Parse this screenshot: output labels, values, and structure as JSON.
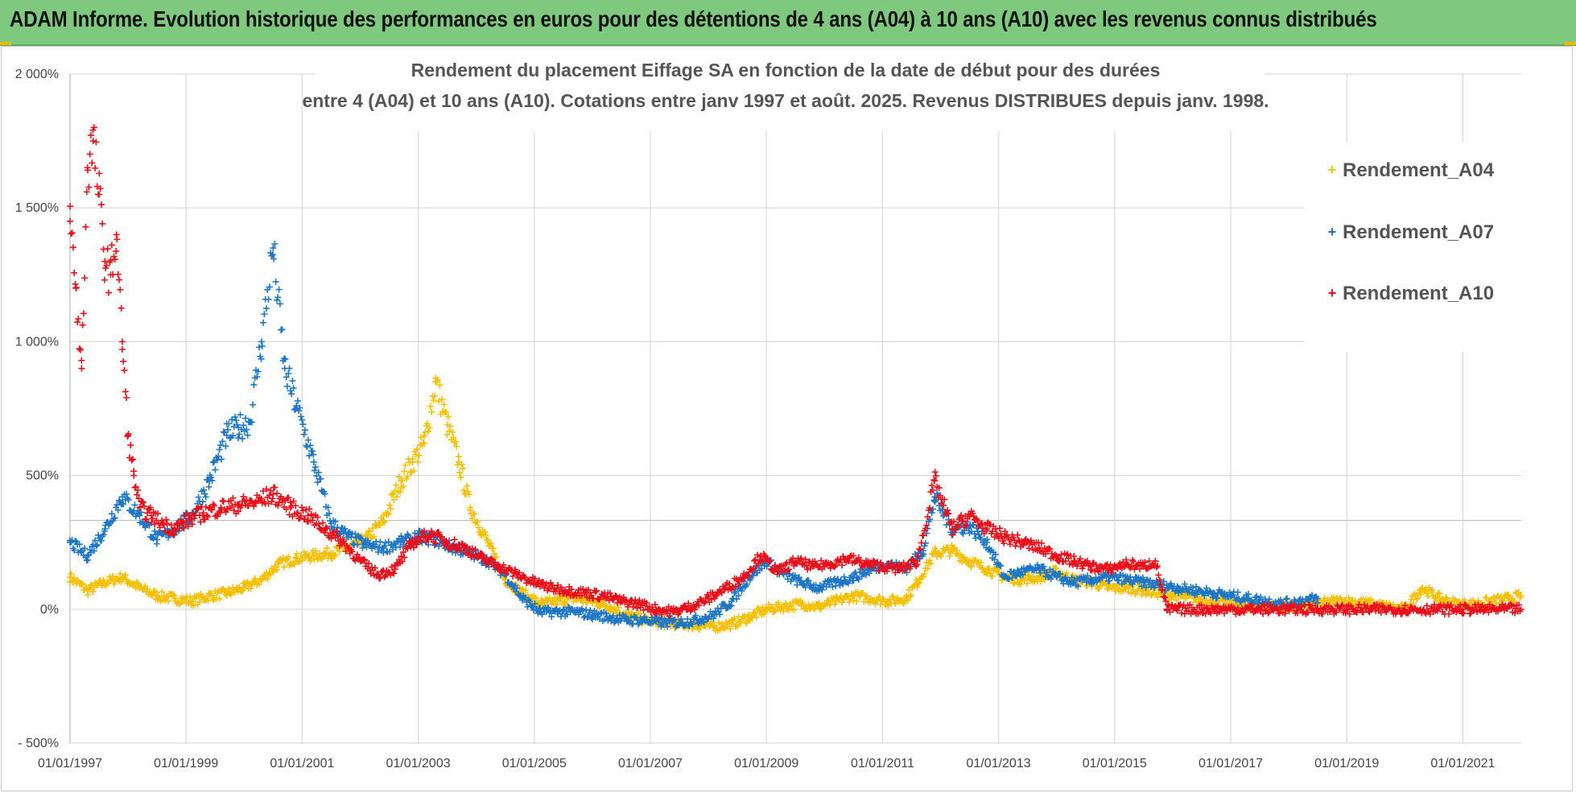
{
  "banner": {
    "title": "ADAM Informe. Evolution historique des performances en euros pour des détentions de 4 ans (A04) à 10 ans (A10) avec les revenus connus distribués"
  },
  "colors": {
    "banner_bg": "#7fc97f",
    "series_A04": "#f5c000",
    "series_A07": "#1f77c4",
    "series_A10": "#e8101a",
    "grid": "#d9d9d9"
  },
  "chart_data": {
    "type": "scatter",
    "title_line1": "Rendement du placement Eiffage SA en fonction de la date de début pour des durées",
    "title_line2": "entre 4 (A04) et 10 ans (A10).  Cotations entre janv 1997 et août. 2025. Revenus DISTRIBUES depuis janv. 1998.",
    "xlabel": "",
    "ylabel": "",
    "ylim": [
      -500,
      2000
    ],
    "xlim": [
      1997.0,
      2022.1
    ],
    "grid": true,
    "legend_position": "top-right",
    "y_ticks": [
      {
        "value": 2000,
        "label": "2 000%"
      },
      {
        "value": 1500,
        "label": "1 500%"
      },
      {
        "value": 1000,
        "label": "1 000%"
      },
      {
        "value": 500,
        "label": "500%"
      },
      {
        "value": 0,
        "label": "0%"
      },
      {
        "value": -500,
        "label": "- 500%"
      }
    ],
    "x_ticks": [
      {
        "value": 1997,
        "label": "01/01/1997"
      },
      {
        "value": 1999,
        "label": "01/01/1999"
      },
      {
        "value": 2001,
        "label": "01/01/2001"
      },
      {
        "value": 2003,
        "label": "01/01/2003"
      },
      {
        "value": 2005,
        "label": "01/01/2005"
      },
      {
        "value": 2007,
        "label": "01/01/2007"
      },
      {
        "value": 2009,
        "label": "01/01/2009"
      },
      {
        "value": 2011,
        "label": "01/01/2011"
      },
      {
        "value": 2013,
        "label": "01/01/2013"
      },
      {
        "value": 2015,
        "label": "01/01/2015"
      },
      {
        "value": 2017,
        "label": "01/01/2017"
      },
      {
        "value": 2019,
        "label": "01/01/2019"
      },
      {
        "value": 2021,
        "label": "01/01/2021"
      }
    ],
    "series": [
      {
        "name": "Rendement_A04",
        "color": "#f5c000",
        "x": [
          1997.0,
          1997.3,
          1997.6,
          1997.9,
          1998.2,
          1998.5,
          1998.8,
          1999.1,
          1999.4,
          1999.7,
          2000.0,
          2000.3,
          2000.6,
          2000.9,
          2001.2,
          2001.5,
          2001.8,
          2002.1,
          2002.4,
          2002.7,
          2002.9,
          2003.1,
          2003.3,
          2003.5,
          2003.7,
          2003.9,
          2004.2,
          2004.5,
          2004.8,
          2005.1,
          2005.4,
          2005.7,
          2006.0,
          2006.3,
          2006.6,
          2006.9,
          2007.2,
          2007.5,
          2007.8,
          2008.1,
          2008.4,
          2008.7,
          2009.0,
          2009.3,
          2009.6,
          2009.9,
          2010.2,
          2010.5,
          2010.8,
          2011.1,
          2011.4,
          2011.6,
          2011.9,
          2012.2,
          2012.5,
          2012.8,
          2013.1,
          2013.4,
          2013.7,
          2014.0,
          2014.3,
          2014.6,
          2014.9,
          2015.2,
          2015.5,
          2015.8,
          2016.1,
          2016.4,
          2016.7,
          2017.0,
          2017.3,
          2017.6,
          2017.9,
          2018.2,
          2018.5,
          2018.8,
          2019.1,
          2019.4,
          2019.7,
          2020.0,
          2020.3,
          2020.6,
          2020.9,
          2021.2,
          2021.5,
          2021.8,
          2022.0
        ],
        "y": [
          120,
          70,
          100,
          120,
          80,
          50,
          40,
          30,
          50,
          60,
          80,
          110,
          170,
          190,
          200,
          210,
          230,
          260,
          330,
          480,
          550,
          620,
          850,
          690,
          550,
          380,
          250,
          110,
          60,
          20,
          30,
          40,
          30,
          10,
          -20,
          -40,
          -50,
          -55,
          -60,
          -65,
          -55,
          -30,
          0,
          10,
          20,
          10,
          30,
          50,
          40,
          30,
          40,
          100,
          210,
          220,
          180,
          150,
          120,
          110,
          120,
          140,
          110,
          100,
          80,
          80,
          70,
          60,
          50,
          40,
          30,
          20,
          10,
          10,
          10,
          10,
          20,
          30,
          30,
          20,
          10,
          0,
          80,
          40,
          20,
          20,
          30,
          40,
          50
        ]
      },
      {
        "name": "Rendement_A07",
        "color": "#1f77c4",
        "x": [
          1997.0,
          1997.3,
          1997.6,
          1997.9,
          1998.2,
          1998.5,
          1998.8,
          1999.1,
          1999.4,
          1999.7,
          1999.9,
          2000.1,
          2000.3,
          2000.5,
          2000.7,
          2000.9,
          2001.2,
          2001.5,
          2001.8,
          2002.1,
          2002.4,
          2002.7,
          2003.0,
          2003.3,
          2003.6,
          2003.9,
          2004.2,
          2004.5,
          2004.8,
          2005.1,
          2005.4,
          2005.7,
          2006.0,
          2006.3,
          2006.6,
          2006.9,
          2007.2,
          2007.5,
          2007.8,
          2008.1,
          2008.4,
          2008.7,
          2009.0,
          2009.3,
          2009.6,
          2009.9,
          2010.2,
          2010.5,
          2010.8,
          2011.1,
          2011.4,
          2011.7,
          2011.9,
          2012.2,
          2012.5,
          2012.8,
          2013.1,
          2013.4,
          2013.7,
          2014.0,
          2014.3,
          2014.6,
          2014.9,
          2015.2,
          2015.5,
          2015.8,
          2016.1,
          2016.4,
          2016.7,
          2017.0,
          2017.3,
          2017.6,
          2017.9,
          2018.2,
          2018.5
        ],
        "y": [
          250,
          200,
          300,
          420,
          350,
          260,
          300,
          350,
          480,
          650,
          680,
          700,
          1000,
          1350,
          900,
          760,
          550,
          320,
          270,
          240,
          230,
          250,
          270,
          260,
          230,
          210,
          180,
          130,
          40,
          -10,
          -10,
          -10,
          -20,
          -30,
          -40,
          -40,
          -50,
          -50,
          -40,
          -20,
          30,
          120,
          180,
          130,
          100,
          80,
          100,
          120,
          150,
          170,
          150,
          220,
          420,
          300,
          310,
          250,
          120,
          140,
          150,
          120,
          100,
          110,
          120,
          110,
          100,
          90,
          80,
          70,
          60,
          50,
          40,
          30,
          20,
          30,
          40
        ]
      },
      {
        "name": "Rendement_A10",
        "color": "#e8101a",
        "x": [
          1997.0,
          1997.1,
          1997.2,
          1997.3,
          1997.4,
          1997.5,
          1997.6,
          1997.7,
          1997.8,
          1997.9,
          1998.0,
          1998.1,
          1998.2,
          1998.4,
          1998.6,
          1998.8,
          1999.0,
          1999.3,
          1999.6,
          1999.9,
          2000.2,
          2000.5,
          2000.8,
          2001.1,
          2001.4,
          2001.7,
          2002.0,
          2002.3,
          2002.6,
          2002.9,
          2003.2,
          2003.5,
          2003.8,
          2004.1,
          2004.4,
          2004.7,
          2005.0,
          2005.3,
          2005.6,
          2005.9,
          2006.2,
          2006.5,
          2006.8,
          2007.1,
          2007.4,
          2007.7,
          2008.0,
          2008.3,
          2008.6,
          2008.9,
          2009.2,
          2009.5,
          2009.8,
          2010.1,
          2010.4,
          2010.7,
          2011.0,
          2011.3,
          2011.6,
          2011.9,
          2012.2,
          2012.5,
          2012.8,
          2013.1,
          2013.4,
          2013.7,
          2014.0,
          2014.3,
          2014.6,
          2014.9,
          2015.2,
          2015.5,
          2015.7,
          2015.9,
          2016.5,
          2017.0,
          2017.5,
          2018.0,
          2018.5,
          2019.0,
          2019.5,
          2020.0,
          2020.5,
          2021.0,
          2021.5,
          2022.0
        ],
        "y": [
          1450,
          1200,
          900,
          1650,
          1750,
          1550,
          1300,
          1250,
          1400,
          1000,
          650,
          500,
          380,
          350,
          320,
          300,
          330,
          360,
          380,
          390,
          400,
          430,
          380,
          350,
          300,
          250,
          180,
          130,
          150,
          250,
          280,
          250,
          230,
          190,
          160,
          130,
          100,
          80,
          70,
          60,
          50,
          30,
          20,
          0,
          -10,
          10,
          40,
          80,
          120,
          200,
          140,
          180,
          160,
          170,
          190,
          170,
          160,
          150,
          180,
          480,
          300,
          350,
          300,
          270,
          250,
          230,
          200,
          180,
          160,
          150,
          170,
          160,
          180,
          0,
          0,
          0,
          0,
          0,
          0,
          0,
          0,
          0,
          0,
          0,
          0,
          0
        ]
      }
    ]
  }
}
